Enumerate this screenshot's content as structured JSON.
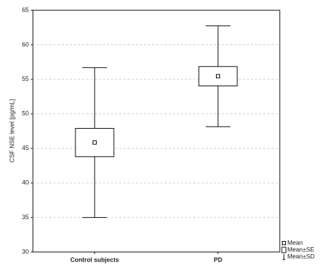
{
  "chart_data": {
    "type": "box",
    "ylabel": "CSF NSE level [pg/mL]",
    "categories": [
      "Control subjects",
      "PD"
    ],
    "mean": [
      45.85,
      55.45
    ],
    "se": [
      2.05,
      1.4
    ],
    "sd": [
      10.85,
      7.3
    ],
    "legend": [
      "Mean",
      "Mean±SE",
      "Mean±SD"
    ],
    "ylim": [
      30,
      65
    ],
    "yticks": [
      30,
      35,
      40,
      45,
      50,
      55,
      60,
      65
    ],
    "grid": true,
    "color": "#000000"
  }
}
